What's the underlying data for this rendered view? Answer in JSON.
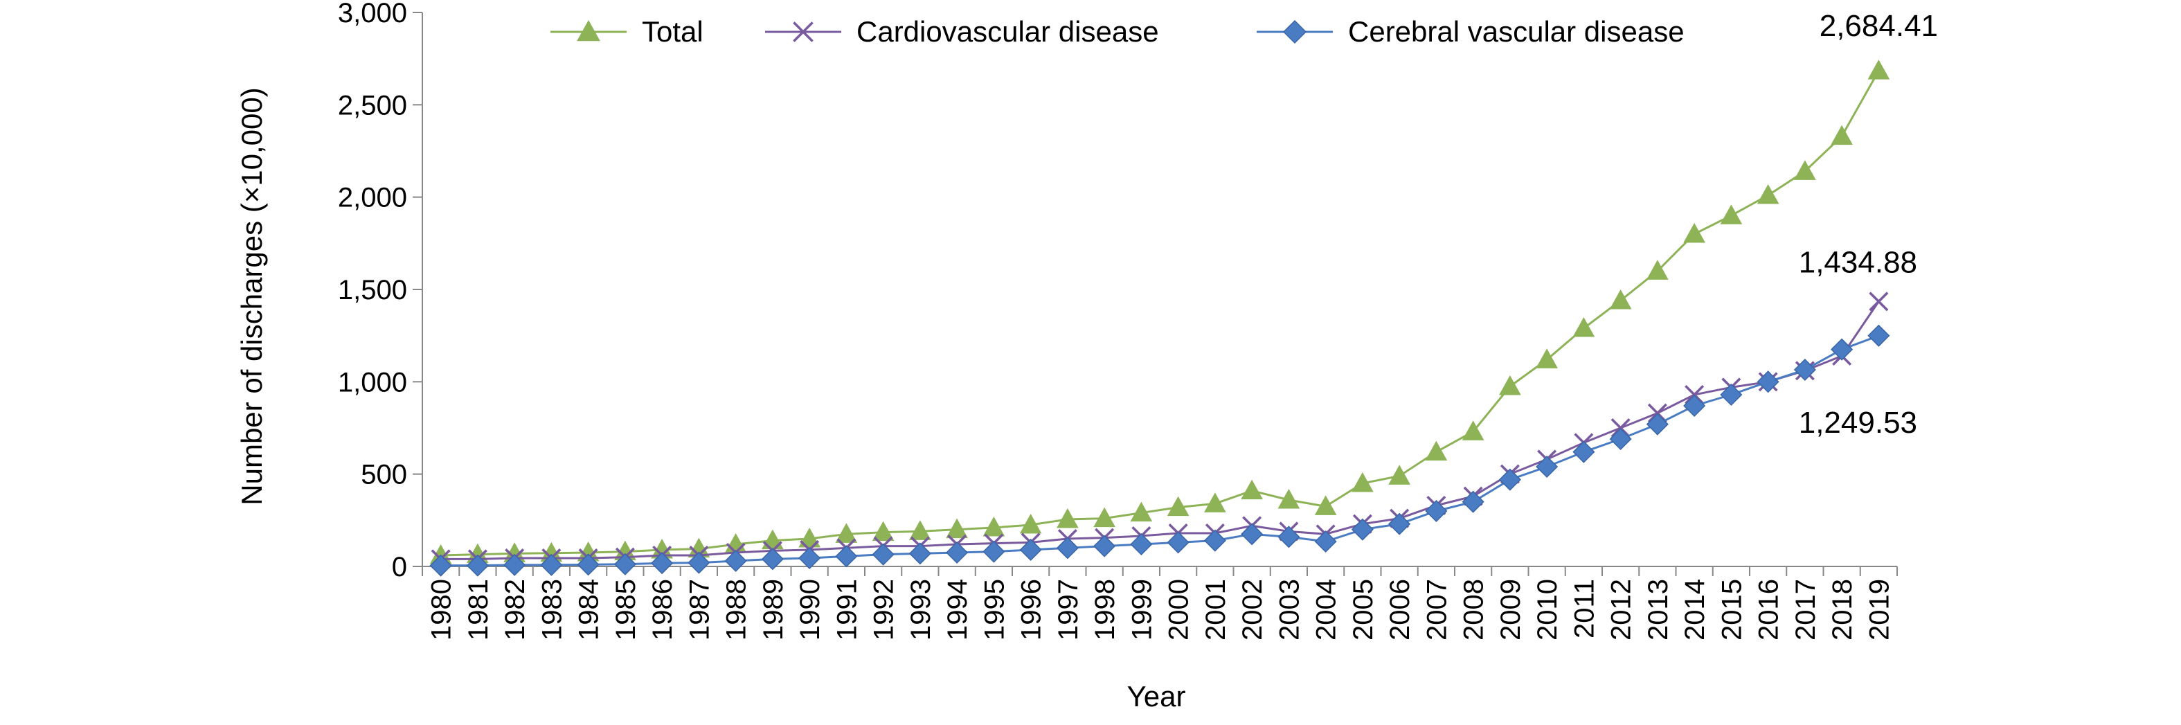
{
  "chart_data": {
    "type": "line",
    "xlabel": "Year",
    "ylabel": "Number of discharges (×10,000)",
    "ylim": [
      0,
      3000
    ],
    "yticks": [
      0,
      500,
      1000,
      1500,
      2000,
      2500,
      3000
    ],
    "ytick_labels": [
      "0",
      "500",
      "1,000",
      "1,500",
      "2,000",
      "2,500",
      "3,000"
    ],
    "grid": false,
    "legend_position": "top",
    "categories": [
      "1980",
      "1981",
      "1982",
      "1983",
      "1984",
      "1985",
      "1986",
      "1987",
      "1988",
      "1989",
      "1990",
      "1991",
      "1992",
      "1993",
      "1994",
      "1995",
      "1996",
      "1997",
      "1998",
      "1999",
      "2000",
      "2001",
      "2002",
      "2003",
      "2004",
      "2005",
      "2006",
      "2007",
      "2008",
      "2009",
      "2010",
      "2011",
      "2012",
      "2013",
      "2014",
      "2015",
      "2016",
      "2017",
      "2018",
      "2019"
    ],
    "series": [
      {
        "name": "Total",
        "color": "#8db356",
        "marker": "triangle",
        "values": [
          60,
          65,
          70,
          72,
          75,
          80,
          90,
          95,
          120,
          140,
          150,
          175,
          185,
          190,
          200,
          210,
          225,
          255,
          260,
          290,
          320,
          340,
          410,
          360,
          325,
          450,
          490,
          620,
          730,
          975,
          1120,
          1290,
          1440,
          1600,
          1800,
          1900,
          2010,
          2140,
          2330,
          2684.41
        ]
      },
      {
        "name": "Cardiovascular disease",
        "color": "#7a5a9e",
        "marker": "x",
        "values": [
          40,
          40,
          45,
          45,
          45,
          50,
          60,
          60,
          75,
          85,
          90,
          100,
          110,
          110,
          120,
          125,
          130,
          150,
          155,
          165,
          180,
          180,
          220,
          190,
          175,
          230,
          260,
          330,
          380,
          500,
          580,
          670,
          750,
          830,
          930,
          970,
          1000,
          1060,
          1140,
          1434.88
        ]
      },
      {
        "name": "Cerebral vascular disease",
        "color": "#4a7cc4",
        "marker": "diamond",
        "values": [
          5,
          5,
          8,
          8,
          10,
          12,
          18,
          20,
          30,
          40,
          45,
          55,
          65,
          70,
          75,
          80,
          90,
          100,
          110,
          120,
          130,
          140,
          175,
          160,
          135,
          200,
          230,
          300,
          350,
          470,
          540,
          620,
          690,
          770,
          870,
          930,
          1000,
          1065,
          1175,
          1249.53
        ]
      }
    ],
    "annotations": [
      {
        "text": "2,684.41",
        "series": 0,
        "index": 39
      },
      {
        "text": "1,434.88",
        "series": 1,
        "index": 39
      },
      {
        "text": "1,249.53",
        "series": 2,
        "index": 39
      }
    ]
  }
}
